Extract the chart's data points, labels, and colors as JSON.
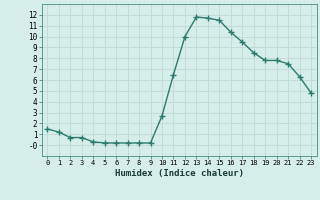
{
  "x": [
    0,
    1,
    2,
    3,
    4,
    5,
    6,
    7,
    8,
    9,
    10,
    11,
    12,
    13,
    14,
    15,
    16,
    17,
    18,
    19,
    20,
    21,
    22,
    23
  ],
  "y": [
    1.5,
    1.2,
    0.7,
    0.7,
    0.3,
    0.2,
    0.2,
    0.2,
    0.2,
    0.2,
    2.7,
    6.5,
    10.0,
    11.8,
    11.7,
    11.5,
    10.4,
    9.5,
    8.5,
    7.8,
    7.8,
    7.5,
    6.3,
    4.8
  ],
  "xlabel": "Humidex (Indice chaleur)",
  "xlim": [
    -0.5,
    23.5
  ],
  "ylim": [
    -1,
    13
  ],
  "yticks": [
    0,
    1,
    2,
    3,
    4,
    5,
    6,
    7,
    8,
    9,
    10,
    11,
    12
  ],
  "ytick_labels": [
    "-0",
    "1",
    "2",
    "3",
    "4",
    "5",
    "6",
    "7",
    "8",
    "9",
    "10",
    "11",
    "12"
  ],
  "xticks": [
    0,
    1,
    2,
    3,
    4,
    5,
    6,
    7,
    8,
    9,
    10,
    11,
    12,
    13,
    14,
    15,
    16,
    17,
    18,
    19,
    20,
    21,
    22,
    23
  ],
  "line_color": "#2d7a6e",
  "bg_color": "#d5eee9",
  "grid_color": "#c4dcd7",
  "marker": "+",
  "marker_size": 4,
  "linewidth": 1.0
}
